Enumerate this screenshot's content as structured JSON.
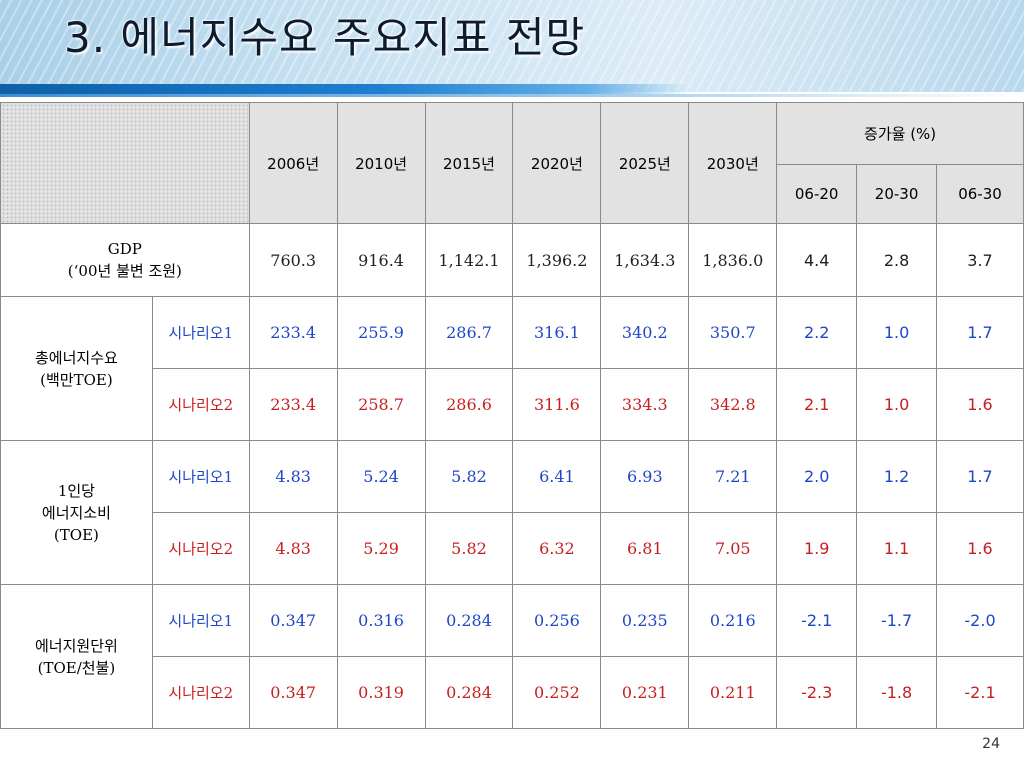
{
  "slide": {
    "title": "3. 에너지수요 주요지표 전망",
    "page_number": "24"
  },
  "table": {
    "years": [
      "2006년",
      "2010년",
      "2015년",
      "2020년",
      "2025년",
      "2030년"
    ],
    "growth_header": "증가율 (%)",
    "growth_periods": [
      "06-20",
      "20-30",
      "06-30"
    ],
    "gdp": {
      "label_line1": "GDP",
      "label_line2": "(‘00년 불변 조원)",
      "values": [
        "760.3",
        "916.4",
        "1,142.1",
        "1,396.2",
        "1,634.3",
        "1,836.0"
      ],
      "growth": [
        "4.4",
        "2.8",
        "3.7"
      ]
    },
    "groups": [
      {
        "label_lines": [
          "총에너지수요",
          "(백만TOE)"
        ],
        "rows": [
          {
            "scenario": "시나리오1",
            "color": "#1f46c8",
            "values": [
              "233.4",
              "255.9",
              "286.7",
              "316.1",
              "340.2",
              "350.7"
            ],
            "growth": [
              "2.2",
              "1.0",
              "1.7"
            ]
          },
          {
            "scenario": "시나리오2",
            "color": "#c81e1e",
            "values": [
              "233.4",
              "258.7",
              "286.6",
              "311.6",
              "334.3",
              "342.8"
            ],
            "growth": [
              "2.1",
              "1.0",
              "1.6"
            ]
          }
        ]
      },
      {
        "label_lines": [
          "1인당",
          "에너지소비",
          "(TOE)"
        ],
        "rows": [
          {
            "scenario": "시나리오1",
            "color": "#1f46c8",
            "values": [
              "4.83",
              "5.24",
              "5.82",
              "6.41",
              "6.93",
              "7.21"
            ],
            "growth": [
              "2.0",
              "1.2",
              "1.7"
            ]
          },
          {
            "scenario": "시나리오2",
            "color": "#c81e1e",
            "values": [
              "4.83",
              "5.29",
              "5.82",
              "6.32",
              "6.81",
              "7.05"
            ],
            "growth": [
              "1.9",
              "1.1",
              "1.6"
            ]
          }
        ]
      },
      {
        "label_lines": [
          "에너지원단위",
          "(TOE/천불)"
        ],
        "rows": [
          {
            "scenario": "시나리오1",
            "color": "#1f46c8",
            "values": [
              "0.347",
              "0.316",
              "0.284",
              "0.256",
              "0.235",
              "0.216"
            ],
            "growth": [
              "-2.1",
              "-1.7",
              "-2.0"
            ]
          },
          {
            "scenario": "시나리오2",
            "color": "#c81e1e",
            "values": [
              "0.347",
              "0.319",
              "0.284",
              "0.252",
              "0.231",
              "0.211"
            ],
            "growth": [
              "-2.3",
              "-1.8",
              "-2.1"
            ]
          }
        ]
      }
    ]
  }
}
